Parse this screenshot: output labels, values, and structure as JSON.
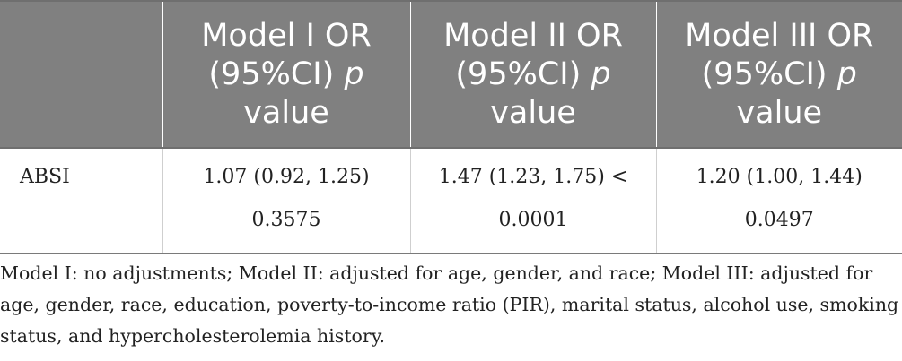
{
  "table": {
    "headers": [
      {
        "prefix": "",
        "italic": "",
        "suffix": ""
      },
      {
        "prefix": "Model I OR (95%CI) ",
        "italic": "p",
        "suffix": " value"
      },
      {
        "prefix": "Model II OR (95%CI) ",
        "italic": "p",
        "suffix": " value"
      },
      {
        "prefix": "Model III OR (95%CI) ",
        "italic": "p",
        "suffix": " value"
      }
    ],
    "rows": [
      {
        "label": "ABSI",
        "model1": "1.07 (0.92, 1.25) 0.3575",
        "model2": "1.47 (1.23, 1.75) < 0.0001",
        "model3": "1.20 (1.00, 1.44) 0.0497"
      }
    ]
  },
  "footnote": "Model I: no adjustments; Model II: adjusted for age, gender, and race; Model III: adjusted for age, gender, race, education, poverty-to-income ratio (PIR), marital status, alcohol use, smoking status, and hypercholesterolemia history."
}
